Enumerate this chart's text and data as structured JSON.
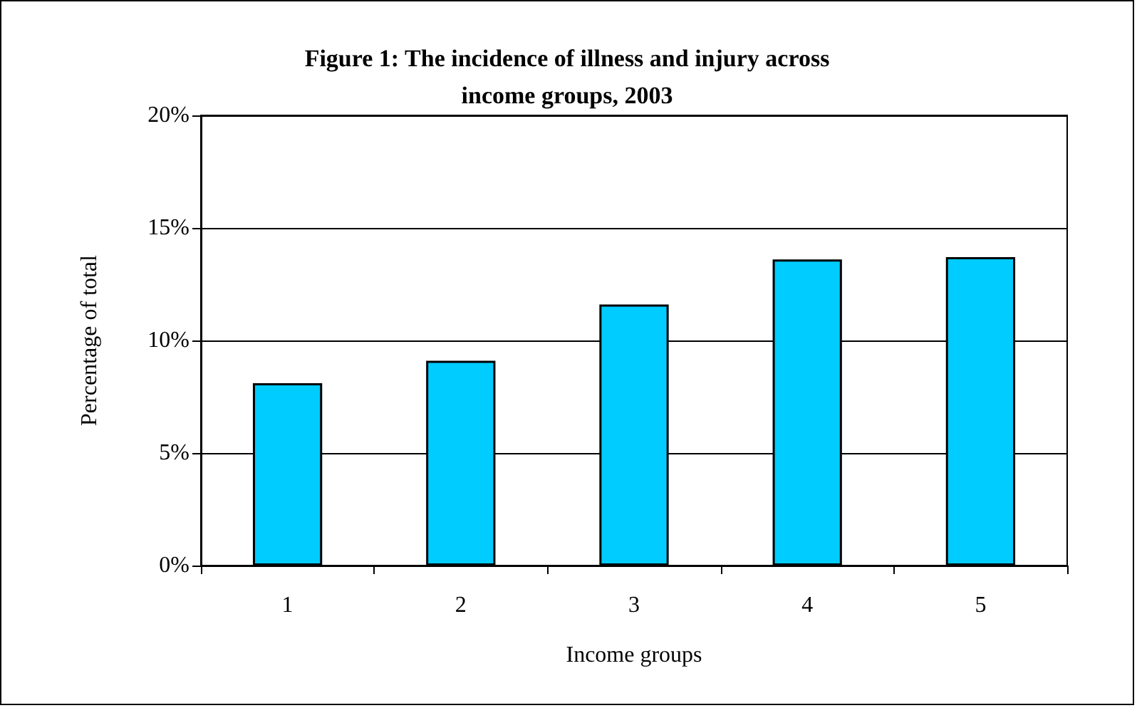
{
  "chart_data": {
    "type": "bar",
    "title": "Figure 1: The incidence of illness and injury across\nincome groups, 2003",
    "xlabel": "Income groups",
    "ylabel": "Percentage of total",
    "categories": [
      "1",
      "2",
      "3",
      "4",
      "5"
    ],
    "values": [
      8.1,
      9.1,
      11.6,
      13.6,
      13.7
    ],
    "color": "#00ccff",
    "ylim": [
      0,
      20
    ],
    "yticks": [
      {
        "value": 0,
        "label": "0%"
      },
      {
        "value": 5,
        "label": "5%"
      },
      {
        "value": 10,
        "label": "10%"
      },
      {
        "value": 15,
        "label": "15%"
      },
      {
        "value": 20,
        "label": "20%"
      }
    ],
    "grid": "y"
  }
}
